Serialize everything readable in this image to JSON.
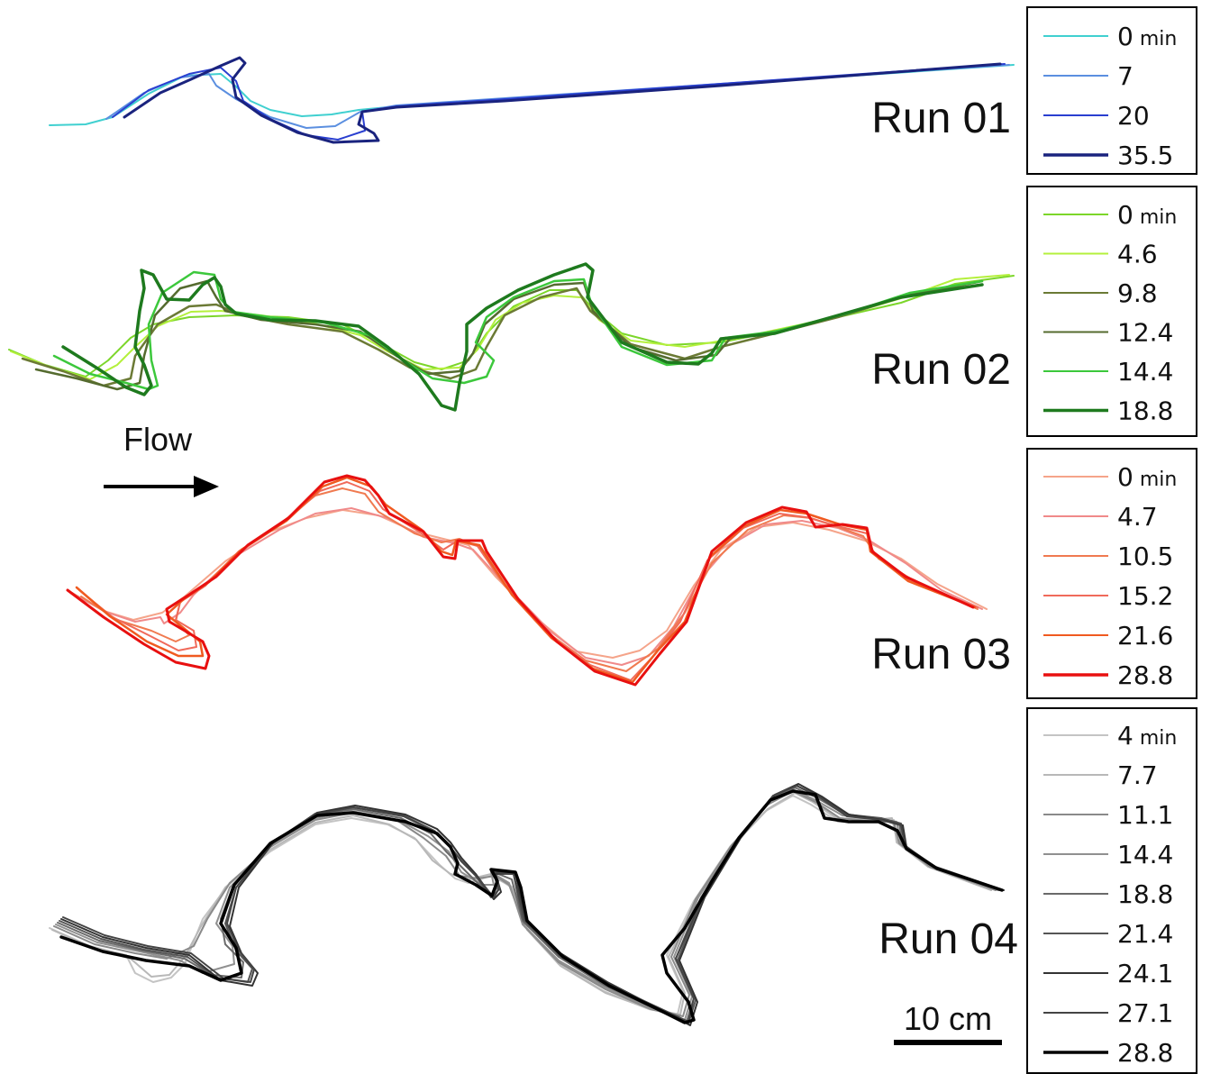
{
  "flow": {
    "label": "Flow"
  },
  "scale": {
    "label": "10 cm"
  },
  "runs": [
    {
      "label": "Run 01",
      "legend": [
        {
          "value": "0",
          "unit": "min",
          "color": "#40d0d0"
        },
        {
          "value": "7",
          "unit": "",
          "color": "#5b8fe0"
        },
        {
          "value": "20",
          "unit": "",
          "color": "#2a3fd0"
        },
        {
          "value": "35.5",
          "unit": "",
          "color": "#1a237e"
        }
      ]
    },
    {
      "label": "Run 02",
      "legend": [
        {
          "value": "0",
          "unit": "min",
          "color": "#7cd62a"
        },
        {
          "value": "4.6",
          "unit": "",
          "color": "#b4f03c"
        },
        {
          "value": "9.8",
          "unit": "",
          "color": "#6b7a35"
        },
        {
          "value": "12.4",
          "unit": "",
          "color": "#556b2f"
        },
        {
          "value": "14.4",
          "unit": "",
          "color": "#3cc83c"
        },
        {
          "value": "18.8",
          "unit": "",
          "color": "#1e7a1e"
        }
      ]
    },
    {
      "label": "Run 03",
      "legend": [
        {
          "value": "0",
          "unit": "min",
          "color": "#f5a48a"
        },
        {
          "value": "4.7",
          "unit": "",
          "color": "#f08a8a"
        },
        {
          "value": "10.5",
          "unit": "",
          "color": "#f07a50"
        },
        {
          "value": "15.2",
          "unit": "",
          "color": "#f06a5a"
        },
        {
          "value": "21.6",
          "unit": "",
          "color": "#f05a20"
        },
        {
          "value": "28.8",
          "unit": "",
          "color": "#e81010"
        }
      ]
    },
    {
      "label": "Run 04",
      "legend": [
        {
          "value": "4",
          "unit": "min",
          "color": "#c4c4c4"
        },
        {
          "value": "7.7",
          "unit": "",
          "color": "#b8b8b8"
        },
        {
          "value": "11.1",
          "unit": "",
          "color": "#8a8a8a"
        },
        {
          "value": "14.4",
          "unit": "",
          "color": "#909090"
        },
        {
          "value": "18.8",
          "unit": "",
          "color": "#6a6a6a"
        },
        {
          "value": "21.4",
          "unit": "",
          "color": "#555555"
        },
        {
          "value": "24.1",
          "unit": "",
          "color": "#333333"
        },
        {
          "value": "27.1",
          "unit": "",
          "color": "#444444"
        },
        {
          "value": "28.8",
          "unit": "",
          "color": "#000000"
        }
      ]
    }
  ]
}
